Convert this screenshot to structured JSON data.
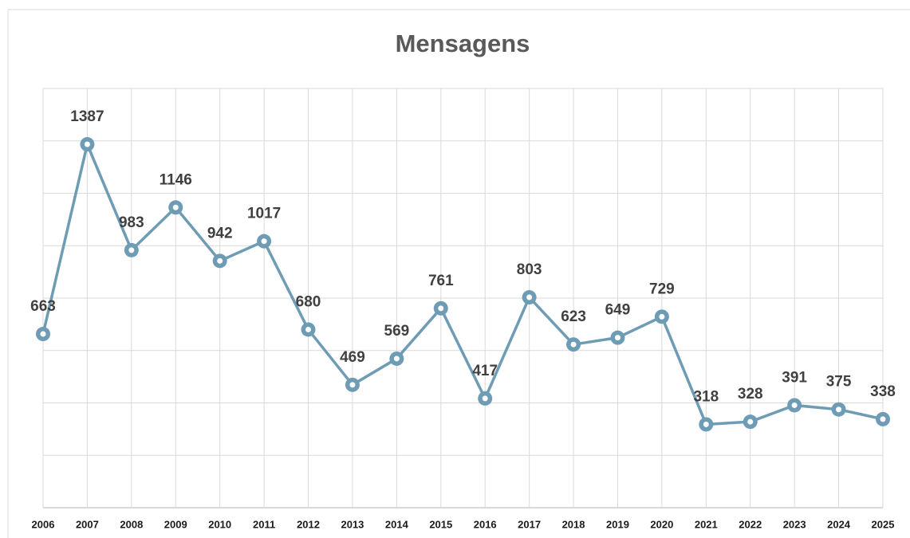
{
  "chart_data": {
    "type": "line",
    "title": "Mensagens",
    "categories": [
      "2006",
      "2007",
      "2008",
      "2009",
      "2010",
      "2011",
      "2012",
      "2013",
      "2014",
      "2015",
      "2016",
      "2017",
      "2018",
      "2019",
      "2020",
      "2021",
      "2022",
      "2023",
      "2024",
      "2025"
    ],
    "series": [
      {
        "name": "Mensagens",
        "color": "#6f9cb5",
        "values": [
          663,
          1387,
          983,
          1146,
          942,
          1017,
          680,
          469,
          569,
          761,
          417,
          803,
          623,
          649,
          729,
          318,
          328,
          391,
          375,
          338
        ]
      }
    ],
    "ylim": [
      0,
      1600
    ],
    "yticks": [
      0,
      200,
      400,
      600,
      800,
      1000,
      1200,
      1400,
      1600
    ],
    "grid": true
  }
}
